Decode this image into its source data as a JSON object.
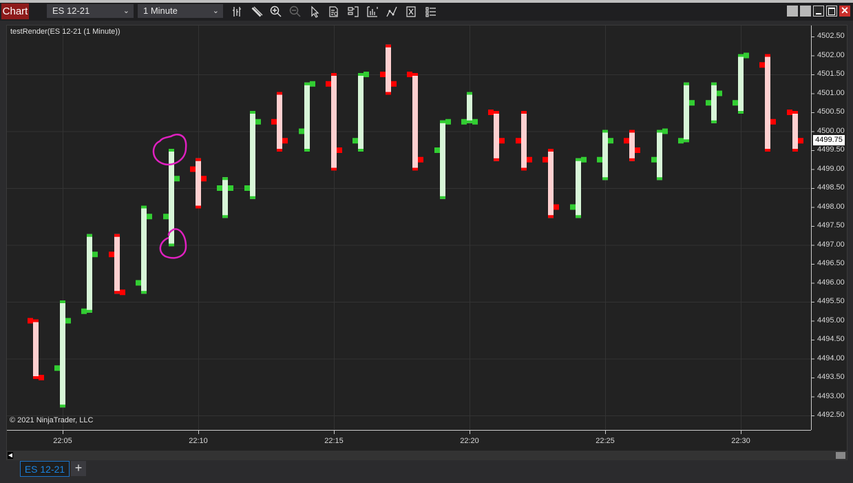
{
  "toolbar": {
    "chart_label": "Chart",
    "instrument": "ES 12-21",
    "interval": "1 Minute",
    "icons": [
      "bar-type-icon",
      "drawing-tool-icon",
      "zoom-in-icon",
      "zoom-out-icon",
      "pointer-icon",
      "data-box-icon",
      "templates-icon",
      "indicators-icon",
      "strategies-icon",
      "properties-icon",
      "chart-trader-icon"
    ],
    "window_icons": [
      "link-icon",
      "link2-icon",
      "minimize-icon",
      "maximize-icon",
      "close-icon"
    ]
  },
  "chart": {
    "title": "testRender(ES 12-21 (1 Minute))",
    "copyright": "© 2021 NinjaTrader, LLC",
    "last_price": "4499.75",
    "price_ticks": [
      "4502.50",
      "4502.00",
      "4501.50",
      "4501.00",
      "4500.50",
      "4500.00",
      "4499.50",
      "4499.00",
      "4498.50",
      "4498.00",
      "4497.50",
      "4497.00",
      "4496.50",
      "4496.00",
      "4495.50",
      "4495.00",
      "4494.50",
      "4494.00",
      "4493.50",
      "4493.00",
      "4492.50"
    ],
    "time_ticks": [
      "22:05",
      "22:10",
      "22:15",
      "22:20",
      "22:25",
      "22:30"
    ],
    "colors": {
      "up_tick": "#32cd32",
      "up_body": "#d8f6d8",
      "down_tick": "#ff0000",
      "down_body": "#ffd0d0",
      "annotation": "#e020c0"
    }
  },
  "chart_data": {
    "type": "ohlc",
    "ylim": [
      4492.5,
      4502.5
    ],
    "grid": true,
    "bars": [
      {
        "t": "22:04",
        "o": 4495.0,
        "h": 4495.0,
        "l": 4493.5,
        "c": 4493.5
      },
      {
        "t": "22:05",
        "o": 4493.75,
        "h": 4495.5,
        "l": 4492.75,
        "c": 4495.0
      },
      {
        "t": "22:06",
        "o": 4495.25,
        "h": 4497.25,
        "l": 4495.25,
        "c": 4496.75
      },
      {
        "t": "22:07",
        "o": 4496.75,
        "h": 4497.25,
        "l": 4495.75,
        "c": 4495.75
      },
      {
        "t": "22:08",
        "o": 4496.0,
        "h": 4498.0,
        "l": 4495.75,
        "c": 4497.75
      },
      {
        "t": "22:09",
        "o": 4497.75,
        "h": 4499.5,
        "l": 4497.0,
        "c": 4498.75
      },
      {
        "t": "22:10",
        "o": 4499.0,
        "h": 4499.25,
        "l": 4498.0,
        "c": 4498.75
      },
      {
        "t": "22:11",
        "o": 4498.5,
        "h": 4498.75,
        "l": 4497.75,
        "c": 4498.5
      },
      {
        "t": "22:12",
        "o": 4498.5,
        "h": 4500.5,
        "l": 4498.25,
        "c": 4500.25
      },
      {
        "t": "22:13",
        "o": 4500.25,
        "h": 4501.0,
        "l": 4499.5,
        "c": 4499.75
      },
      {
        "t": "22:14",
        "o": 4500.0,
        "h": 4501.25,
        "l": 4499.5,
        "c": 4501.25
      },
      {
        "t": "22:15",
        "o": 4501.25,
        "h": 4501.5,
        "l": 4499.0,
        "c": 4499.5
      },
      {
        "t": "22:16",
        "o": 4499.75,
        "h": 4501.5,
        "l": 4499.5,
        "c": 4501.5
      },
      {
        "t": "22:17",
        "o": 4501.5,
        "h": 4502.25,
        "l": 4501.0,
        "c": 4501.25
      },
      {
        "t": "22:18",
        "o": 4501.5,
        "h": 4501.5,
        "l": 4499.0,
        "c": 4499.25
      },
      {
        "t": "22:19",
        "o": 4499.5,
        "h": 4500.25,
        "l": 4498.25,
        "c": 4500.25
      },
      {
        "t": "22:20",
        "o": 4500.25,
        "h": 4501.0,
        "l": 4500.25,
        "c": 4500.25
      },
      {
        "t": "22:21",
        "o": 4500.5,
        "h": 4500.5,
        "l": 4499.25,
        "c": 4499.75
      },
      {
        "t": "22:22",
        "o": 4499.75,
        "h": 4500.5,
        "l": 4499.0,
        "c": 4499.25
      },
      {
        "t": "22:23",
        "o": 4499.25,
        "h": 4499.5,
        "l": 4497.75,
        "c": 4498.0
      },
      {
        "t": "22:24",
        "o": 4498.0,
        "h": 4499.25,
        "l": 4497.75,
        "c": 4499.25
      },
      {
        "t": "22:25",
        "o": 4499.25,
        "h": 4500.0,
        "l": 4498.75,
        "c": 4499.75
      },
      {
        "t": "22:26",
        "o": 4499.75,
        "h": 4500.0,
        "l": 4499.25,
        "c": 4499.5
      },
      {
        "t": "22:27",
        "o": 4499.25,
        "h": 4500.0,
        "l": 4498.75,
        "c": 4500.0
      },
      {
        "t": "22:28",
        "o": 4499.75,
        "h": 4501.25,
        "l": 4499.75,
        "c": 4500.75
      },
      {
        "t": "22:29",
        "o": 4500.75,
        "h": 4501.25,
        "l": 4500.25,
        "c": 4501.0
      },
      {
        "t": "22:30",
        "o": 4500.75,
        "h": 4502.0,
        "l": 4500.5,
        "c": 4502.0
      },
      {
        "t": "22:31",
        "o": 4501.75,
        "h": 4502.0,
        "l": 4499.5,
        "c": 4500.25
      },
      {
        "t": "22:32",
        "o": 4500.5,
        "h": 4500.5,
        "l": 4499.5,
        "c": 4499.75
      }
    ]
  },
  "tabs": {
    "items": [
      {
        "label": "ES 12-21"
      }
    ],
    "add_label": "+"
  }
}
